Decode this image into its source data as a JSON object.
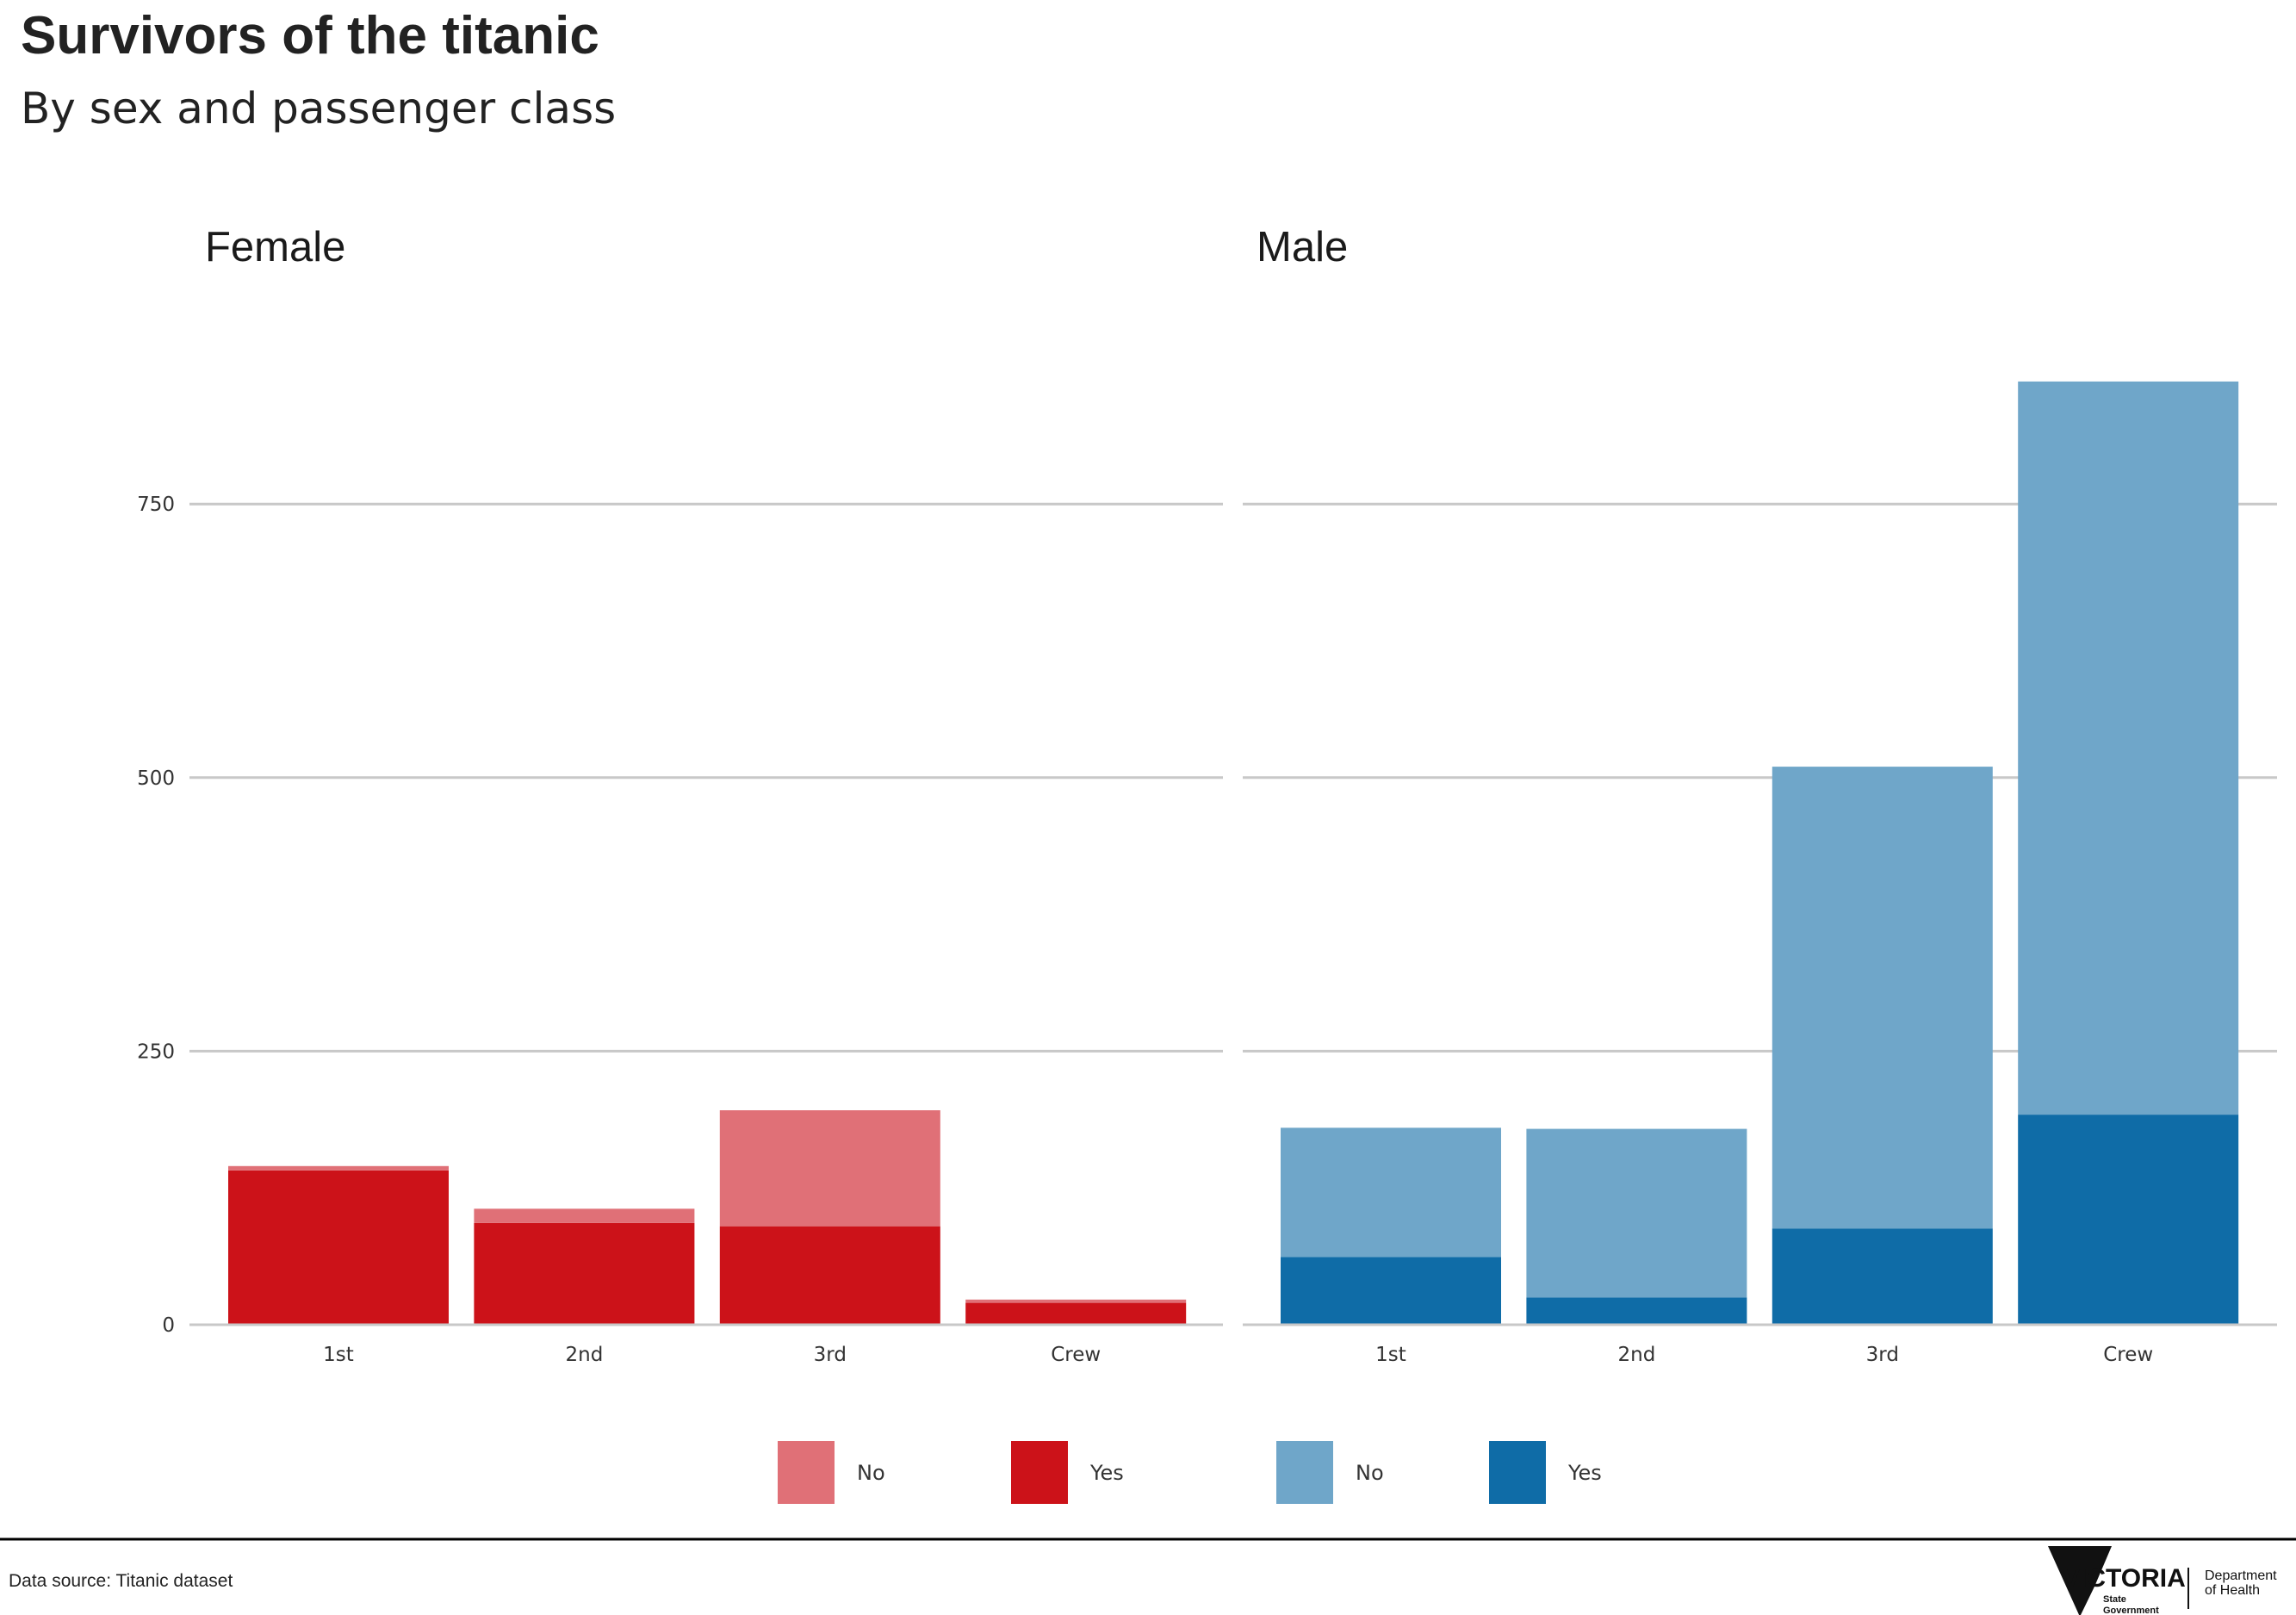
{
  "title": "Survivors of the titanic",
  "subtitle": "By sex and passenger class",
  "source": "Data source: Titanic dataset",
  "logo": {
    "name": "VICTORIA",
    "line1": "State",
    "line2": "Government",
    "dept1": "Department",
    "dept2": "of Health"
  },
  "colors": {
    "female_no": "#e07077",
    "female_yes": "#cc1219",
    "male_no": "#6fa6c9",
    "male_yes": "#0f6ca7"
  },
  "chart_data": {
    "type": "bar",
    "stacked": true,
    "ylim": [
      0,
      900
    ],
    "yticks": [
      0,
      250,
      500,
      750
    ],
    "grid": true,
    "legend_position": "bottom",
    "categories": [
      "1st",
      "2nd",
      "3rd",
      "Crew"
    ],
    "facets": [
      {
        "name": "Female",
        "series": [
          {
            "name": "Yes",
            "values": [
              141,
              93,
              90,
              20
            ]
          },
          {
            "name": "No",
            "values": [
              4,
              13,
              106,
              3
            ]
          }
        ]
      },
      {
        "name": "Male",
        "series": [
          {
            "name": "Yes",
            "values": [
              62,
              25,
              88,
              192
            ]
          },
          {
            "name": "No",
            "values": [
              118,
              154,
              422,
              670
            ]
          }
        ]
      }
    ],
    "legend": [
      {
        "label": "No",
        "color": "#e07077"
      },
      {
        "label": "Yes",
        "color": "#cc1219"
      },
      {
        "label": "No",
        "color": "#6fa6c9"
      },
      {
        "label": "Yes",
        "color": "#0f6ca7"
      }
    ]
  }
}
